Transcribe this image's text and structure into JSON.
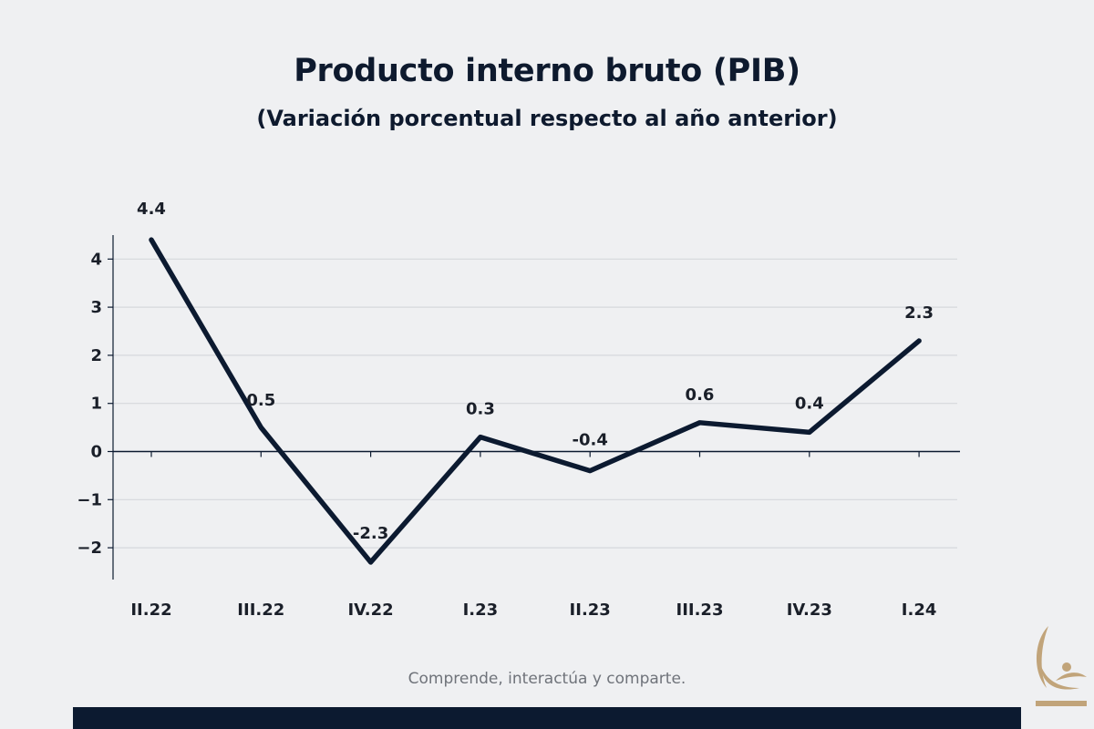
{
  "colors": {
    "background": "#eff0f2",
    "line": "#0c1a30",
    "text": "#0e1a2e",
    "footer_text": "#6f737a",
    "gridline": "#d6d8dc",
    "logo_gold": "#c1a47a"
  },
  "logo": {
    "icon": "abstract-gold-emblem-icon"
  },
  "footer": {
    "text": "Comprende, interactúa y comparte."
  },
  "chart_data": {
    "type": "line",
    "title": "Producto interno bruto (PIB)",
    "subtitle": "(Variación porcentual respecto al año anterior)",
    "xlabel": "",
    "ylabel": "",
    "categories": [
      "II.22",
      "III.22",
      "IV.22",
      "I.23",
      "II.23",
      "III.23",
      "IV.23",
      "I.24"
    ],
    "series": [
      {
        "values": [
          4.4,
          0.5,
          -2.3,
          0.3,
          -0.4,
          0.6,
          0.4,
          2.3
        ],
        "labels": [
          "4.4",
          "0.5",
          "-2.3",
          "0.3",
          "-0.4",
          "0.6",
          "0.4",
          "2.3"
        ]
      }
    ],
    "yticks": [
      4,
      3,
      2,
      1,
      0,
      -1,
      -2
    ],
    "ytick_labels": [
      "4",
      "3",
      "2",
      "1",
      "0",
      "−1",
      "−2"
    ],
    "ylim": [
      -2.65,
      4.6
    ],
    "grid": true,
    "legend": "none"
  }
}
